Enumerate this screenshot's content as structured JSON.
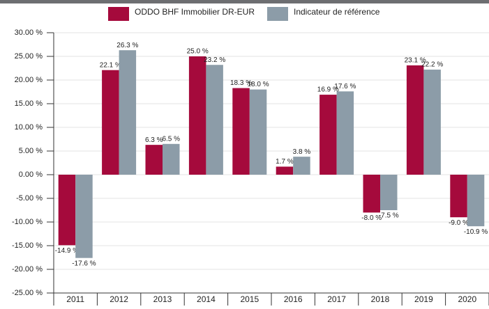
{
  "chart_data": {
    "type": "bar",
    "categories": [
      "2011",
      "2012",
      "2013",
      "2014",
      "2015",
      "2016",
      "2017",
      "2018",
      "2019",
      "2020"
    ],
    "series": [
      {
        "name": "ODDO BHF Immobilier DR-EUR",
        "color": "#a50a3c",
        "values": [
          -14.9,
          22.1,
          6.3,
          25.0,
          18.3,
          1.7,
          16.9,
          -8.0,
          23.1,
          -9.0
        ],
        "value_labels": [
          "-14.9 %",
          "22.1 %",
          "6.3 %",
          "25.0 %",
          "18.3 %",
          "1.7 %",
          "16.9 %",
          "-8.0 %",
          "23.1 %",
          "-9.0 %"
        ]
      },
      {
        "name": "Indicateur de référence",
        "color": "#8c9ca8",
        "values": [
          -17.6,
          26.3,
          6.5,
          23.2,
          18.0,
          3.8,
          17.6,
          -7.5,
          22.2,
          -10.9
        ],
        "value_labels": [
          "-17.6 %",
          "26.3 %",
          "6.5 %",
          "23.2 %",
          "18.0 %",
          "3.8 %",
          "17.6 %",
          "-7.5 %",
          "22.2 %",
          "-10.9 %"
        ]
      }
    ],
    "ylim": [
      -25,
      30
    ],
    "yticks": [
      {
        "value": 30,
        "label": "30.00 %"
      },
      {
        "value": 25,
        "label": "25.00 %"
      },
      {
        "value": 20,
        "label": "20.00 %"
      },
      {
        "value": 15,
        "label": "15.00 %"
      },
      {
        "value": 10,
        "label": "10.00 %"
      },
      {
        "value": 5,
        "label": "5.00 %"
      },
      {
        "value": 0,
        "label": "0.00 %"
      },
      {
        "value": -5,
        "label": "-5.00 %"
      },
      {
        "value": -10,
        "label": "-10.00 %"
      },
      {
        "value": -15,
        "label": "-15.00 %"
      },
      {
        "value": -20,
        "label": "-20.00 %"
      },
      {
        "value": -25,
        "label": "-25.00 %"
      }
    ],
    "grid": true,
    "legend": "top"
  }
}
